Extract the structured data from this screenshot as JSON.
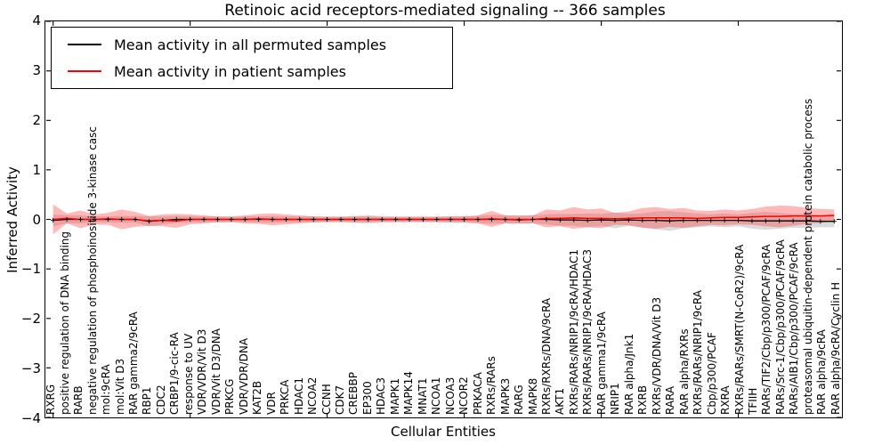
{
  "title": "Retinoic acid receptors-mediated signaling -- 366 samples",
  "colors": {
    "permuted_line": "#000000",
    "patient_line": "#ff0000",
    "permuted_band": "#aaaaaa",
    "patient_band": "#ff2a2a",
    "frame": "#000000"
  },
  "yticklabels": [
    "4",
    "3",
    "2",
    "1",
    "0",
    "−1",
    "−2",
    "−3",
    "−4"
  ],
  "chart_data": {
    "type": "line",
    "title": "Retinoic acid receptors-mediated signaling -- 366 samples",
    "xlabel": "Cellular Entities",
    "ylabel": "Inferred Activity",
    "ylim": [
      -4,
      4
    ],
    "yticks": [
      4,
      3,
      2,
      1,
      0,
      -1,
      -2,
      -3,
      -4
    ],
    "xtick_index_positions": [
      0,
      10,
      20,
      30,
      40,
      50
    ],
    "grid": false,
    "legend_position": "upper left",
    "categories": [
      "RXRG",
      "positive regulation of DNA binding",
      "RARB",
      "negative regulation of phosphoinositide 3-kinase casc",
      "mol:9cRA",
      "mol:Vit D3",
      "RAR gamma2/9cRA",
      "RBP1",
      "CDC2",
      "CRBP1/9-cic-RA",
      "response to UV",
      "VDR/VDR/Vit D3",
      "VDR/Vit D3/DNA",
      "PRKCG",
      "VDR/VDR/DNA",
      "KAT2B",
      "VDR",
      "PRKCA",
      "HDAC1",
      "NCOA2",
      "CCNH",
      "CDK7",
      "CREBBP",
      "EP300",
      "HDAC3",
      "MAPK1",
      "MAPK14",
      "MNAT1",
      "NCOA1",
      "NCOA3",
      "NCOR2",
      "PRKACA",
      "RXRs/RARs",
      "MAPK3",
      "RARG",
      "MAPK8",
      "RXRs/RXRs/DNA/9cRA",
      "AKT1",
      "RXRs/RARs/NRIP1/9cRA/HDAC1",
      "RXRs/RARs/NRIP1/9cRA/HDAC3",
      "RAR gamma1/9cRA",
      "NRIP1",
      "RAR alpha/Jnk1",
      "RXRB",
      "RXRs/VDR/DNA/Vit D3",
      "RARA",
      "RAR alpha/RXRs",
      "RXRs/RARs/NRIP1/9cRA",
      "Cbp/p300/PCAF",
      "RXRA",
      "RXRs/RARs/SMRT(N-CoR2)/9cRA",
      "TFIIH",
      "RARs/TIF2/Cbp/p300/PCAF/9cRA",
      "RARs/Src-1/Cbp/p300/PCAF/9cRA",
      "RARs/AIB1/Cbp/p300/PCAF/9cRA",
      "proteasomal ubiquitin-dependent protein catabolic process",
      "RAR alpha/9cRA",
      "RAR alpha/9cRA/Cyclin H"
    ],
    "series": [
      {
        "name": "Mean activity in all permuted samples",
        "color": "#000000",
        "values": [
          -0.02,
          0,
          0,
          0,
          0,
          0,
          0,
          -0.04,
          -0.02,
          0,
          0,
          0,
          0,
          0,
          0,
          0,
          0,
          0,
          0,
          0,
          0,
          0,
          0,
          0,
          0,
          0,
          0,
          0,
          0,
          0,
          0,
          0,
          0,
          0,
          -0.01,
          0,
          0,
          -0.01,
          -0.01,
          -0.02,
          -0.01,
          -0.02,
          -0.01,
          -0.02,
          -0.02,
          -0.03,
          -0.02,
          -0.02,
          -0.02,
          -0.02,
          -0.02,
          -0.03,
          -0.03,
          -0.03,
          -0.03,
          -0.03,
          -0.04,
          -0.04
        ],
        "band_halfwidth": [
          0.12,
          0.08,
          0.08,
          0.06,
          0.06,
          0.07,
          0.07,
          0.1,
          0.08,
          0.07,
          0.06,
          0.06,
          0.06,
          0.05,
          0.06,
          0.06,
          0.07,
          0.06,
          0.06,
          0.06,
          0.06,
          0.06,
          0.07,
          0.08,
          0.07,
          0.06,
          0.06,
          0.06,
          0.06,
          0.06,
          0.07,
          0.07,
          0.09,
          0.08,
          0.08,
          0.08,
          0.1,
          0.12,
          0.12,
          0.14,
          0.12,
          0.16,
          0.12,
          0.14,
          0.18,
          0.2,
          0.16,
          0.14,
          0.12,
          0.14,
          0.12,
          0.16,
          0.18,
          0.16,
          0.14,
          0.14,
          0.12,
          0.12
        ]
      },
      {
        "name": "Mean activity in patient samples",
        "color": "#ff0000",
        "values": [
          0,
          0.02,
          0,
          0,
          0.01,
          0,
          0,
          -0.03,
          -0.02,
          -0.03,
          0,
          0,
          0,
          0,
          0,
          0.01,
          0,
          0,
          0,
          0,
          0,
          0,
          0,
          0,
          0,
          0,
          0,
          0,
          0,
          0,
          0,
          0,
          0.01,
          0,
          0,
          0,
          0.02,
          0.02,
          0.03,
          0.02,
          0.02,
          0.01,
          0.02,
          0.03,
          0.03,
          0.03,
          0.03,
          0.02,
          0.03,
          0.04,
          0.04,
          0.05,
          0.06,
          0.06,
          0.07,
          0.07,
          0.07,
          0.08
        ],
        "band_halfwidth": [
          0.3,
          0.1,
          0.18,
          0.1,
          0.12,
          0.2,
          0.15,
          0.1,
          0.12,
          0.14,
          0.1,
          0.08,
          0.06,
          0.06,
          0.08,
          0.1,
          0.12,
          0.1,
          0.08,
          0.06,
          0.05,
          0.05,
          0.06,
          0.06,
          0.05,
          0.05,
          0.05,
          0.05,
          0.05,
          0.06,
          0.06,
          0.08,
          0.16,
          0.08,
          0.08,
          0.08,
          0.18,
          0.16,
          0.22,
          0.18,
          0.2,
          0.12,
          0.14,
          0.2,
          0.22,
          0.18,
          0.2,
          0.16,
          0.14,
          0.16,
          0.14,
          0.16,
          0.2,
          0.22,
          0.2,
          0.16,
          0.14,
          0.12
        ]
      }
    ]
  }
}
